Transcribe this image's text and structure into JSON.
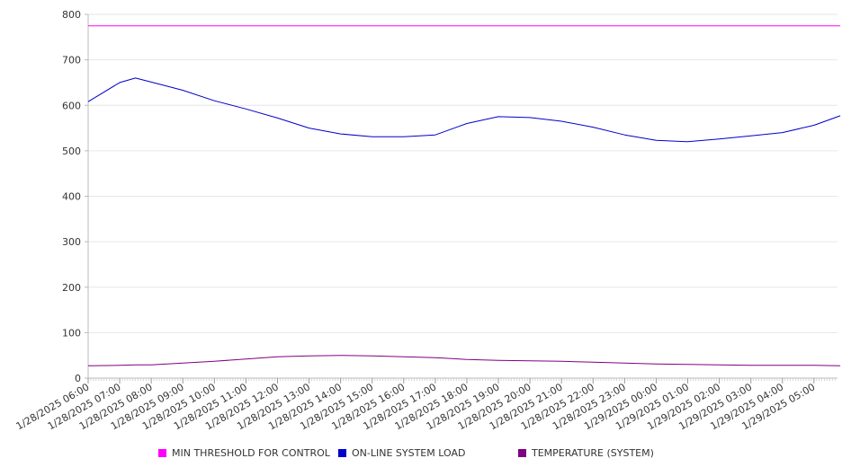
{
  "chart_data": {
    "type": "line",
    "ylim": [
      0,
      800
    ],
    "y_ticks": [
      0,
      100,
      200,
      300,
      400,
      500,
      600,
      700,
      800
    ],
    "grid": true,
    "legend_position": "bottom",
    "x_tick_labels": [
      "1/28/2025 06:00",
      "1/28/2025 07:00",
      "1/28/2025 08:00",
      "1/28/2025 09:00",
      "1/28/2025 10:00",
      "1/28/2025 11:00",
      "1/28/2025 12:00",
      "1/28/2025 13:00",
      "1/28/2025 14:00",
      "1/28/2025 15:00",
      "1/28/2025 16:00",
      "1/28/2025 17:00",
      "1/28/2025 18:00",
      "1/28/2025 19:00",
      "1/28/2025 20:00",
      "1/28/2025 21:00",
      "1/28/2025 22:00",
      "1/28/2025 23:00",
      "1/29/2025 00:00",
      "1/29/2025 01:00",
      "1/29/2025 02:00",
      "1/29/2025 03:00",
      "1/29/2025 04:00",
      "1/29/2025 05:00"
    ],
    "x": [
      "1/28/2025 06:00",
      "1/28/2025 07:00",
      "1/28/2025 07:30",
      "1/28/2025 08:00",
      "1/28/2025 09:00",
      "1/28/2025 10:00",
      "1/28/2025 11:00",
      "1/28/2025 12:00",
      "1/28/2025 13:00",
      "1/28/2025 14:00",
      "1/28/2025 15:00",
      "1/28/2025 16:00",
      "1/28/2025 17:00",
      "1/28/2025 18:00",
      "1/28/2025 19:00",
      "1/28/2025 20:00",
      "1/28/2025 21:00",
      "1/28/2025 22:00",
      "1/28/2025 23:00",
      "1/29/2025 00:00",
      "1/29/2025 01:00",
      "1/29/2025 02:00",
      "1/29/2025 03:00",
      "1/29/2025 04:00",
      "1/29/2025 05:00",
      "1/29/2025 05:50"
    ],
    "series": [
      {
        "name": "MIN THRESHOLD FOR CONTROL",
        "color": "#ff00ff",
        "values": [
          775,
          775,
          775,
          775,
          775,
          775,
          775,
          775,
          775,
          775,
          775,
          775,
          775,
          775,
          775,
          775,
          775,
          775,
          775,
          775,
          775,
          775,
          775,
          775,
          775,
          775
        ]
      },
      {
        "name": "ON-LINE SYSTEM LOAD",
        "color": "#0000cc",
        "values": [
          608,
          650,
          660,
          651,
          633,
          610,
          592,
          572,
          550,
          537,
          531,
          531,
          535,
          560,
          575,
          573,
          565,
          552,
          535,
          523,
          520,
          526,
          533,
          540,
          556,
          577
        ]
      },
      {
        "name": "TEMPERATURE (SYSTEM)",
        "color": "#800080",
        "values": [
          27,
          28,
          29,
          29,
          33,
          37,
          42,
          47,
          49,
          50,
          49,
          47,
          45,
          41,
          39,
          38,
          37,
          35,
          33,
          31,
          30,
          29,
          28,
          28,
          28,
          27
        ]
      }
    ]
  }
}
